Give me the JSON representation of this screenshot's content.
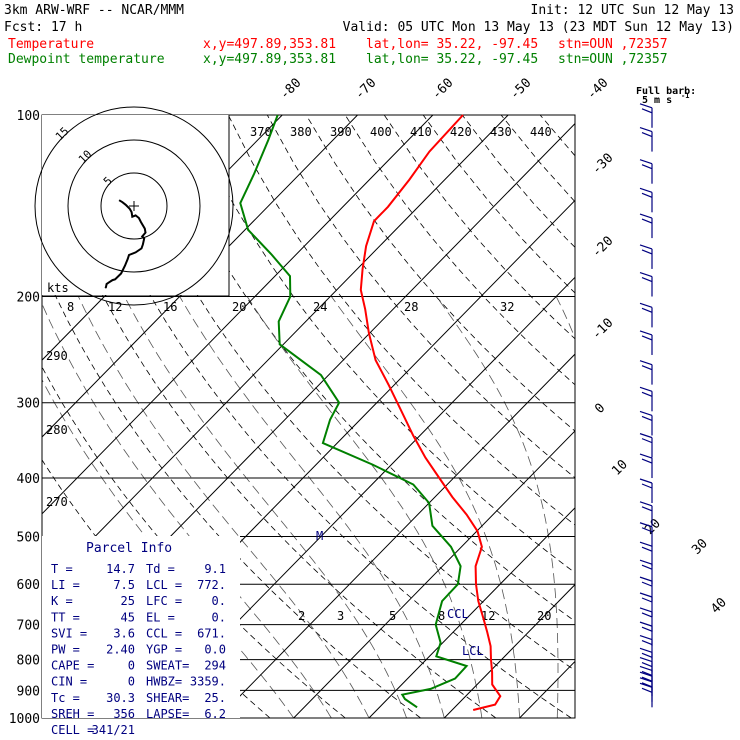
{
  "header": {
    "model": "3km ARW-WRF -- NCAR/MMM",
    "init": "Init: 12 UTC Sun 12 May 13",
    "fcst": "Fcst:    17 h",
    "valid": "Valid: 05 UTC Mon 13 May 13 (23 MDT Sun 12 May 13)",
    "temp_line": {
      "label": "Temperature",
      "xy": "x,y=497.89,353.81",
      "latlon": "lat,lon= 35.22, -97.45",
      "stn": "stn=OUN ,72357",
      "color": "#ff0000"
    },
    "dew_line": {
      "label": "Dewpoint temperature",
      "xy": "x,y=497.89,353.81",
      "latlon": "lat,lon= 35.22, -97.45",
      "stn": "stn=OUN ,72357",
      "color": "#008000"
    }
  },
  "wind_key": {
    "line1": "Full barb:",
    "line2": "5 m s"
  },
  "hodograph": {
    "unit": "kts",
    "ring_labels": [
      "5",
      "10",
      "15"
    ]
  },
  "parcel_info": {
    "title": "Parcel Info",
    "rows": [
      [
        "T  =",
        "14.7",
        "Td =",
        "9.1"
      ],
      [
        "LI =",
        "7.5",
        "LCL =",
        "772."
      ],
      [
        "K  =",
        "25",
        "LFC =",
        "0."
      ],
      [
        "TT =",
        "45",
        "EL  =",
        "0."
      ],
      [
        "SVI =",
        "3.6",
        "CCL =",
        "671."
      ],
      [
        "PW =",
        "2.40",
        "YGP =",
        "0.0"
      ],
      [
        "CAPE =",
        "0",
        "SWEAT=",
        "294"
      ],
      [
        "CIN =",
        "0",
        "HWBZ=",
        "3359."
      ],
      [
        "Tc =",
        "30.3",
        "SHEAR=",
        "25."
      ],
      [
        "SREH =",
        "356",
        "LAPSE=",
        "6.2"
      ],
      [
        "CELL =",
        "341/21",
        "",
        ""
      ]
    ]
  },
  "annotations": {
    "ccl": "CCL",
    "lcl": "LCL",
    "hodo_mark": "M"
  },
  "chart_data": {
    "type": "line",
    "yscale": "log-pressure",
    "ylim": [
      1000,
      100
    ],
    "pressure_ticks": [
      100,
      200,
      300,
      400,
      500,
      600,
      700,
      800,
      900,
      1000
    ],
    "isotherm_labels": [
      "-80",
      "-70",
      "-60",
      "-50",
      "-40",
      "-30",
      "-20",
      "-10",
      "0",
      "10",
      "20",
      "30",
      "40"
    ],
    "theta_labels_top": [
      "370",
      "380",
      "390",
      "400",
      "410",
      "420",
      "430",
      "440"
    ],
    "theta_labels_left": [
      "290",
      "280",
      "270"
    ],
    "mixing_ratio_labels_top": [
      "8",
      "12",
      "16",
      "20",
      "24",
      "28",
      "32"
    ],
    "mixing_ratio_labels_low": [
      "2",
      "3",
      "5",
      "8",
      "12",
      "20"
    ],
    "series": [
      {
        "name": "Temperature",
        "color": "#ff0000",
        "points": [
          {
            "p": 970,
            "t": 12.8
          },
          {
            "p": 950,
            "t": 15.0
          },
          {
            "p": 920,
            "t": 14.6
          },
          {
            "p": 880,
            "t": 12.0
          },
          {
            "p": 840,
            "t": 10.4
          },
          {
            "p": 800,
            "t": 8.6
          },
          {
            "p": 760,
            "t": 6.8
          },
          {
            "p": 720,
            "t": 4.5
          },
          {
            "p": 680,
            "t": 2.0
          },
          {
            "p": 640,
            "t": -0.7
          },
          {
            "p": 600,
            "t": -3.2
          },
          {
            "p": 560,
            "t": -5.6
          },
          {
            "p": 520,
            "t": -7.3
          },
          {
            "p": 490,
            "t": -9.9
          },
          {
            "p": 460,
            "t": -13.5
          },
          {
            "p": 430,
            "t": -17.7
          },
          {
            "p": 400,
            "t": -21.9
          },
          {
            "p": 370,
            "t": -26.4
          },
          {
            "p": 340,
            "t": -30.9
          },
          {
            "p": 310,
            "t": -35.6
          },
          {
            "p": 280,
            "t": -40.8
          },
          {
            "p": 255,
            "t": -45.7
          },
          {
            "p": 230,
            "t": -50.1
          },
          {
            "p": 210,
            "t": -53.7
          },
          {
            "p": 195,
            "t": -56.8
          },
          {
            "p": 180,
            "t": -59.3
          },
          {
            "p": 165,
            "t": -61.8
          },
          {
            "p": 150,
            "t": -64.0
          },
          {
            "p": 142,
            "t": -64.0
          },
          {
            "p": 128,
            "t": -64.7
          },
          {
            "p": 115,
            "t": -65.7
          },
          {
            "p": 100,
            "t": -66.0
          }
        ]
      },
      {
        "name": "Dewpoint temperature",
        "color": "#008000",
        "points": [
          {
            "p": 960,
            "t": 5.0
          },
          {
            "p": 930,
            "t": 2.3
          },
          {
            "p": 915,
            "t": 1.4
          },
          {
            "p": 895,
            "t": 4.4
          },
          {
            "p": 860,
            "t": 6.3
          },
          {
            "p": 820,
            "t": 6.2
          },
          {
            "p": 790,
            "t": 0.9
          },
          {
            "p": 750,
            "t": -0.3
          },
          {
            "p": 700,
            "t": -3.3
          },
          {
            "p": 640,
            "t": -5.5
          },
          {
            "p": 600,
            "t": -5.6
          },
          {
            "p": 560,
            "t": -7.6
          },
          {
            "p": 520,
            "t": -11.4
          },
          {
            "p": 480,
            "t": -16.6
          },
          {
            "p": 440,
            "t": -20.0
          },
          {
            "p": 410,
            "t": -24.5
          },
          {
            "p": 380,
            "t": -32.5
          },
          {
            "p": 350,
            "t": -41.9
          },
          {
            "p": 320,
            "t": -44.0
          },
          {
            "p": 300,
            "t": -45.0
          },
          {
            "p": 270,
            "t": -51.0
          },
          {
            "p": 240,
            "t": -60.5
          },
          {
            "p": 220,
            "t": -63.6
          },
          {
            "p": 200,
            "t": -65.3
          },
          {
            "p": 185,
            "t": -68.0
          },
          {
            "p": 170,
            "t": -73.4
          },
          {
            "p": 155,
            "t": -79.6
          },
          {
            "p": 140,
            "t": -84.1
          },
          {
            "p": 125,
            "t": -86.1
          },
          {
            "p": 110,
            "t": -88.6
          },
          {
            "p": 100,
            "t": -90.6
          }
        ]
      }
    ],
    "wind_barbs_pressure_hpa": [
      960,
      940,
      920,
      900,
      870,
      840,
      800,
      760,
      720,
      680,
      640,
      600,
      560,
      520,
      480,
      440,
      400,
      370,
      340,
      310,
      280,
      250,
      225,
      200,
      180,
      160,
      145,
      130,
      115,
      105
    ],
    "hodograph_trace": [
      {
        "u": 1.4,
        "v": 0.0
      },
      {
        "u": 1.5,
        "v": 0.1
      },
      {
        "u": 1.6,
        "v": 0.6
      },
      {
        "u": 1.9,
        "v": 0.8
      },
      {
        "u": 2.5,
        "v": 1.2
      },
      {
        "u": 2.9,
        "v": 1.3
      },
      {
        "u": 3.8,
        "v": 2.2
      },
      {
        "u": 4.4,
        "v": 3.4
      },
      {
        "u": 4.8,
        "v": 4.4
      },
      {
        "u": 5.0,
        "v": 5.0
      },
      {
        "u": 6.0,
        "v": 5.4
      },
      {
        "u": 6.9,
        "v": 6.0
      },
      {
        "u": 7.1,
        "v": 6.6
      },
      {
        "u": 7.3,
        "v": 7.5
      },
      {
        "u": 7.0,
        "v": 7.8
      },
      {
        "u": 7.5,
        "v": 8.4
      },
      {
        "u": 7.4,
        "v": 9.0
      },
      {
        "u": 6.8,
        "v": 10.0
      },
      {
        "u": 6.5,
        "v": 10.6
      },
      {
        "u": 6.0,
        "v": 11.0
      },
      {
        "u": 5.5,
        "v": 10.8
      },
      {
        "u": 5.4,
        "v": 11.5
      },
      {
        "u": 5.1,
        "v": 12.0
      },
      {
        "u": 4.5,
        "v": 12.6
      },
      {
        "u": 4.0,
        "v": 13.0
      },
      {
        "u": 3.5,
        "v": 13.3
      }
    ]
  }
}
